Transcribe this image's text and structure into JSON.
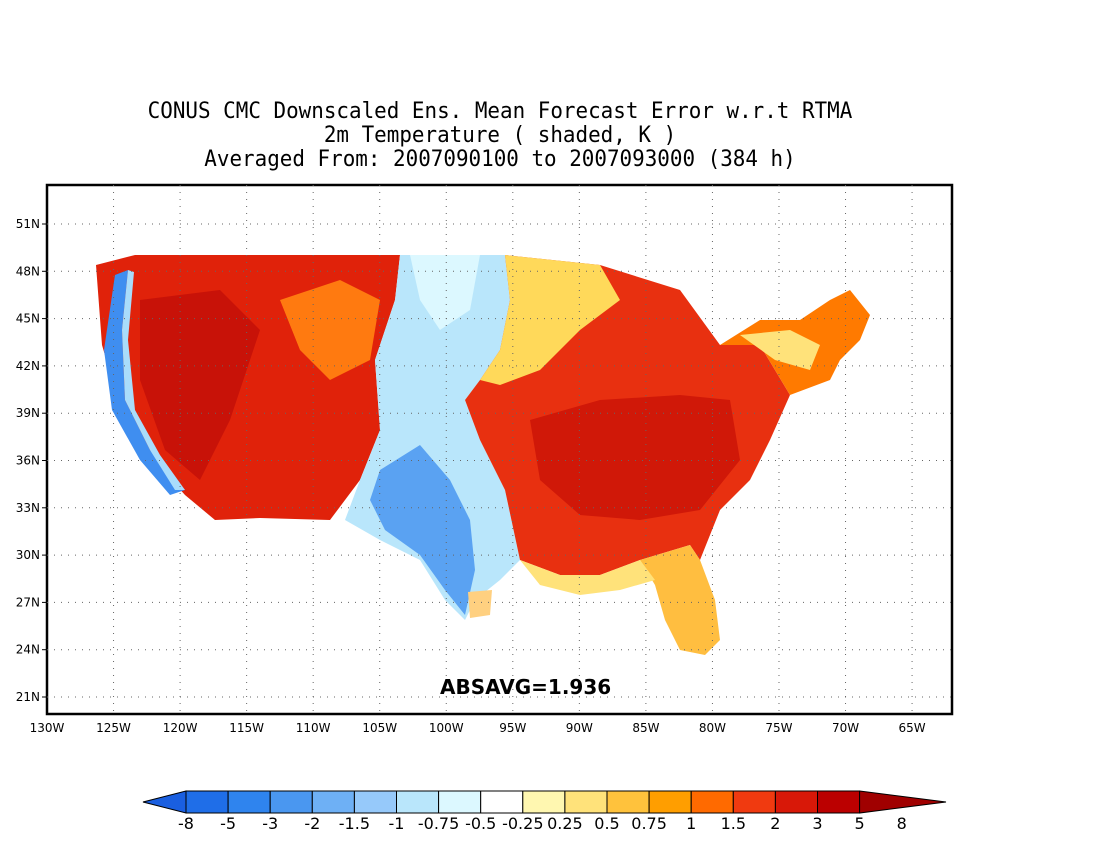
{
  "title": {
    "line1": "CONUS CMC Downscaled Ens. Mean Forecast Error w.r.t RTMA",
    "line2": "2m Temperature ( shaded, K )",
    "line3": "Averaged From: 2007090100 to 2007093000 (384 h)"
  },
  "map": {
    "lon_range": [
      -130,
      -62
    ],
    "lat_range": [
      20,
      53
    ],
    "lon_ticks": [
      "130W",
      "125W",
      "120W",
      "115W",
      "110W",
      "105W",
      "100W",
      "95W",
      "90W",
      "85W",
      "80W",
      "75W",
      "70W",
      "65W"
    ],
    "lat_ticks": [
      "21N",
      "24N",
      "27N",
      "30N",
      "33N",
      "36N",
      "39N",
      "42N",
      "45N",
      "48N",
      "51N"
    ],
    "grid": "dotted",
    "statistic": "ABSAVG=1.936"
  },
  "colorbar": {
    "labels": [
      "-8",
      "-5",
      "-3",
      "-2",
      "-1.5",
      "-1",
      "-0.75",
      "-0.5",
      "-0.25",
      "0.25",
      "0.5",
      "0.75",
      "1",
      "1.5",
      "2",
      "3",
      "5",
      "8"
    ],
    "colors": [
      "#1a5fe0",
      "#1f6ee8",
      "#2f84ee",
      "#4a97f0",
      "#6eb0f5",
      "#96c9fa",
      "#b9e6fb",
      "#dcf8ff",
      "#ffffff",
      "#fff7b0",
      "#ffe27a",
      "#ffc23c",
      "#ff9e00",
      "#ff6a00",
      "#f03a10",
      "#d81808",
      "#bb0000",
      "#a00000"
    ]
  },
  "regions": [
    {
      "name": "west-coast-cool",
      "color": "#3f8ef0"
    },
    {
      "name": "west-warm",
      "color": "#e0220a"
    },
    {
      "name": "plains-cool",
      "color": "#75b5f5"
    },
    {
      "name": "east-warm",
      "color": "#e83010"
    },
    {
      "name": "northeast-warm",
      "color": "#ff7a00"
    },
    {
      "name": "florida-mild",
      "color": "#ffbe40"
    }
  ]
}
